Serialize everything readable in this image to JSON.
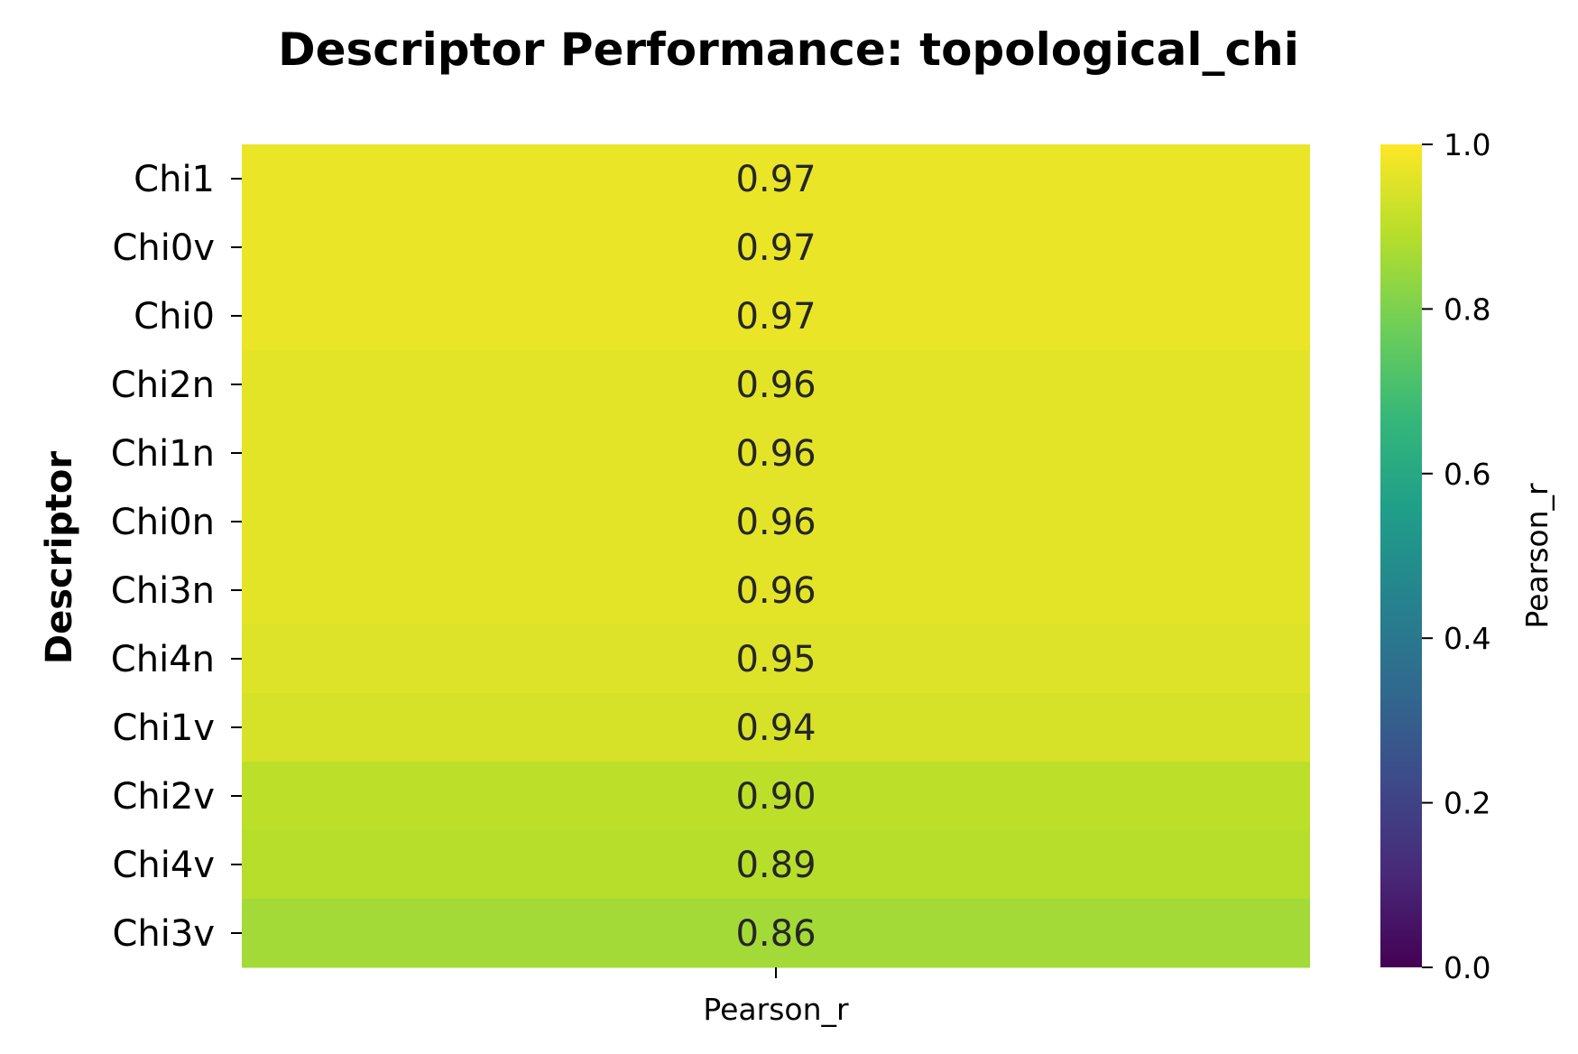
{
  "chart_data": {
    "type": "heatmap",
    "title": "Descriptor Performance: topological_chi",
    "ylabel": "Descriptor",
    "xlabel": "",
    "columns": [
      "Pearson_r"
    ],
    "rows": [
      "Chi1",
      "Chi0v",
      "Chi0",
      "Chi2n",
      "Chi1n",
      "Chi0n",
      "Chi3n",
      "Chi4n",
      "Chi1v",
      "Chi2v",
      "Chi4v",
      "Chi3v"
    ],
    "values": [
      0.97,
      0.97,
      0.97,
      0.96,
      0.96,
      0.96,
      0.96,
      0.95,
      0.94,
      0.9,
      0.89,
      0.86
    ],
    "value_labels": [
      "0.97",
      "0.97",
      "0.97",
      "0.96",
      "0.96",
      "0.96",
      "0.96",
      "0.95",
      "0.94",
      "0.90",
      "0.89",
      "0.86"
    ],
    "colormap": "viridis",
    "vmin": 0.0,
    "vmax": 1.0,
    "colorbar": {
      "label": "Pearson_r",
      "ticks": [
        "0.0",
        "0.2",
        "0.4",
        "0.6",
        "0.8",
        "1.0"
      ]
    },
    "colors": {
      "viridis_stops": [
        "#440154",
        "#482878",
        "#3e4989",
        "#31688e",
        "#26828e",
        "#1f9e89",
        "#35b779",
        "#6ece58",
        "#b5de2b",
        "#fde725"
      ]
    }
  }
}
